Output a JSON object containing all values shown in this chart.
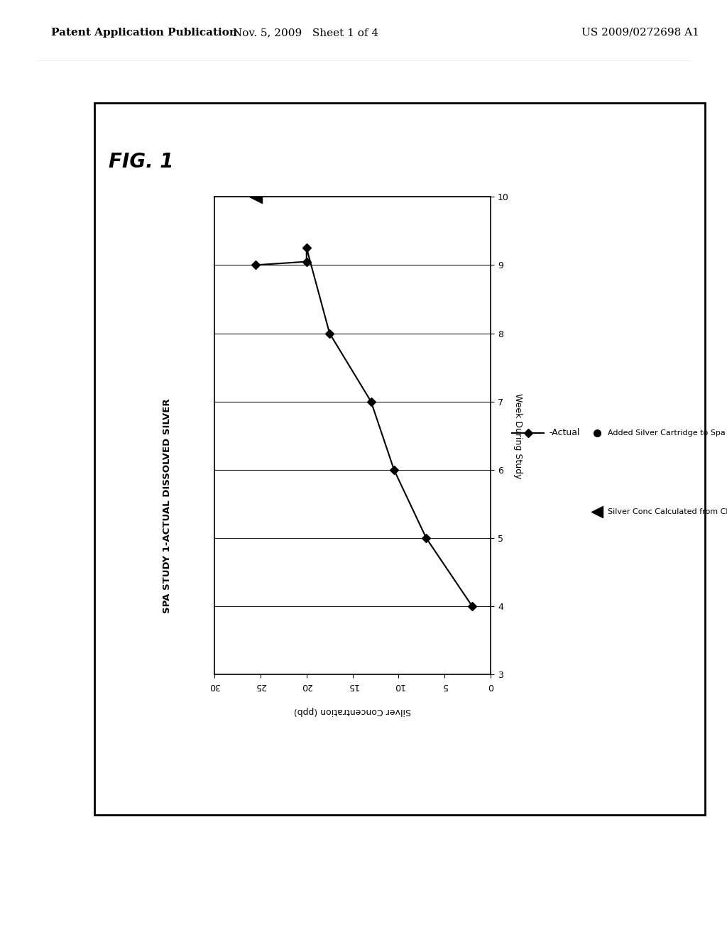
{
  "fig_label": "FIG. 1",
  "chart_title": "SPA STUDY 1-ACTUAL DISSOLVED SILVER",
  "xlabel_bottom": "Silver Concentration (ppb)",
  "ylabel_right": "Week During Study",
  "conc_min": 0,
  "conc_max": 30,
  "week_min": 3,
  "week_max": 10,
  "conc_ticks": [
    0,
    5,
    10,
    15,
    20,
    25,
    30
  ],
  "week_ticks": [
    3,
    4,
    5,
    6,
    7,
    8,
    9,
    10
  ],
  "actual_concs": [
    25.5,
    20.0,
    20.0,
    17.5,
    13.0,
    10.5,
    7.0,
    2.0
  ],
  "actual_weeks": [
    9.0,
    9.05,
    9.25,
    8.0,
    7.0,
    6.0,
    5.0,
    4.0
  ],
  "triangle_conc": 25.5,
  "triangle_week": 10.0,
  "line_color": "#000000",
  "marker_color": "#000000",
  "bg_color": "#ffffff",
  "patent_header_left": "Patent Application Publication",
  "patent_header_mid": "Nov. 5, 2009   Sheet 1 of 4",
  "patent_header_right": "US 2009/0272698 A1",
  "legend_line_label": "-Actual",
  "legend_circle_label": "Added Silver Cartridge to Spa",
  "legend_triangle_label": "Silver Conc Calculated from Chloride"
}
